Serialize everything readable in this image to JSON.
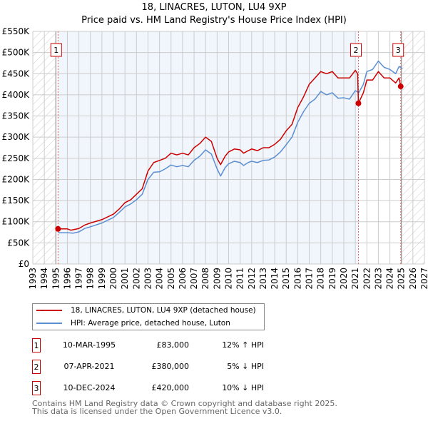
{
  "title": "18, LINACRES, LUTON, LU4 9XP",
  "subtitle": "Price paid vs. HM Land Registry's House Price Index (HPI)",
  "chart_data": {
    "type": "line",
    "title": "18, LINACRES, LUTON, LU4 9XP",
    "subtitle": "Price paid vs. HM Land Registry's House Price Index (HPI)",
    "xlim": [
      1993,
      2027
    ],
    "ylim": [
      0,
      550000
    ],
    "x_ticks": [
      "1993",
      "1994",
      "1995",
      "1996",
      "1997",
      "1998",
      "1999",
      "2000",
      "2001",
      "2002",
      "2003",
      "2004",
      "2005",
      "2006",
      "2007",
      "2008",
      "2009",
      "2010",
      "2011",
      "2012",
      "2013",
      "2014",
      "2015",
      "2016",
      "2017",
      "2018",
      "2019",
      "2020",
      "2021",
      "2022",
      "2023",
      "2024",
      "2025",
      "2026",
      "2027"
    ],
    "y_ticks": [
      "£0",
      "£50K",
      "£100K",
      "£150K",
      "£200K",
      "£250K",
      "£300K",
      "£350K",
      "£400K",
      "£450K",
      "£500K",
      "£550K"
    ],
    "colors": {
      "price": "#cc0000",
      "hpi": "#5b8fd1"
    },
    "series": [
      {
        "name": "18, LINACRES, LUTON, LU4 9XP (detached house)",
        "x": [
          1995.2,
          1996,
          1996.3,
          1997,
          1997.5,
          1998,
          1999,
          2000,
          2000.5,
          2001,
          2001.5,
          2002,
          2002.5,
          2003,
          2003.5,
          2004,
          2004.5,
          2005,
          2005.5,
          2006,
          2006.5,
          2007,
          2007.5,
          2008,
          2008.5,
          2009,
          2009.3,
          2009.7,
          2010,
          2010.5,
          2011,
          2011.3,
          2011.7,
          2012,
          2012.5,
          2013,
          2013.5,
          2014,
          2014.5,
          2015,
          2015.5,
          2016,
          2016.5,
          2017,
          2017.5,
          2018,
          2018.5,
          2019,
          2019.5,
          2020,
          2020.5,
          2021,
          2021.2,
          2021.27,
          2021.7,
          2022,
          2022.5,
          2023,
          2023.5,
          2024,
          2024.5,
          2024.8,
          2024.94,
          2025.1
        ],
        "y": [
          83,
          83,
          80,
          84,
          92,
          97,
          105,
          118,
          130,
          145,
          152,
          165,
          178,
          220,
          240,
          245,
          250,
          262,
          258,
          262,
          258,
          275,
          285,
          300,
          290,
          250,
          235,
          255,
          265,
          272,
          270,
          262,
          268,
          272,
          268,
          275,
          275,
          283,
          295,
          315,
          330,
          370,
          395,
          425,
          440,
          455,
          450,
          455,
          440,
          440,
          440,
          458,
          450,
          380,
          405,
          435,
          435,
          455,
          440,
          440,
          428,
          440,
          420,
          420
        ]
      },
      {
        "name": "HPI: Average price, detached house, Luton",
        "x": [
          1995.2,
          1996,
          1996.5,
          1997,
          1997.5,
          1998,
          1999,
          2000,
          2000.5,
          2001,
          2001.5,
          2002,
          2002.5,
          2003,
          2003.5,
          2004,
          2004.5,
          2005,
          2005.5,
          2006,
          2006.5,
          2007,
          2007.5,
          2008,
          2008.5,
          2009,
          2009.3,
          2009.7,
          2010,
          2010.5,
          2011,
          2011.3,
          2011.7,
          2012,
          2012.5,
          2013,
          2013.5,
          2014,
          2014.5,
          2015,
          2015.5,
          2016,
          2016.5,
          2017,
          2017.5,
          2018,
          2018.5,
          2019,
          2019.5,
          2020,
          2020.5,
          2021,
          2021.3,
          2021.7,
          2022,
          2022.5,
          2023,
          2023.5,
          2024,
          2024.5,
          2024.8,
          2025.1
        ],
        "y": [
          74,
          74,
          73,
          76,
          84,
          88,
          97,
          110,
          122,
          135,
          142,
          152,
          165,
          200,
          217,
          218,
          225,
          234,
          230,
          233,
          230,
          245,
          255,
          270,
          260,
          225,
          208,
          228,
          237,
          243,
          240,
          233,
          240,
          243,
          240,
          245,
          246,
          253,
          265,
          282,
          300,
          335,
          360,
          380,
          390,
          408,
          400,
          405,
          392,
          393,
          390,
          410,
          405,
          425,
          455,
          460,
          480,
          465,
          460,
          450,
          467,
          462
        ]
      }
    ],
    "y_units": "thousands GBP",
    "sales": [
      {
        "id": "1",
        "x": 1995.19,
        "y": 83
      },
      {
        "id": "2",
        "x": 2021.27,
        "y": 380
      },
      {
        "id": "3",
        "x": 2024.94,
        "y": 420
      }
    ]
  },
  "legend": {
    "price": "18, LINACRES, LUTON, LU4 9XP (detached house)",
    "hpi": "HPI: Average price, detached house, Luton"
  },
  "transactions": [
    {
      "id": "1",
      "date": "10-MAR-1995",
      "price": "£83,000",
      "hpi": "12% ↑ HPI"
    },
    {
      "id": "2",
      "date": "07-APR-2021",
      "price": "£380,000",
      "hpi": "5% ↓ HPI"
    },
    {
      "id": "3",
      "date": "10-DEC-2024",
      "price": "£420,000",
      "hpi": "10% ↓ HPI"
    }
  ],
  "footer": [
    "Contains HM Land Registry data © Crown copyright and database right 2025.",
    "This data is licensed under the Open Government Licence v3.0."
  ]
}
